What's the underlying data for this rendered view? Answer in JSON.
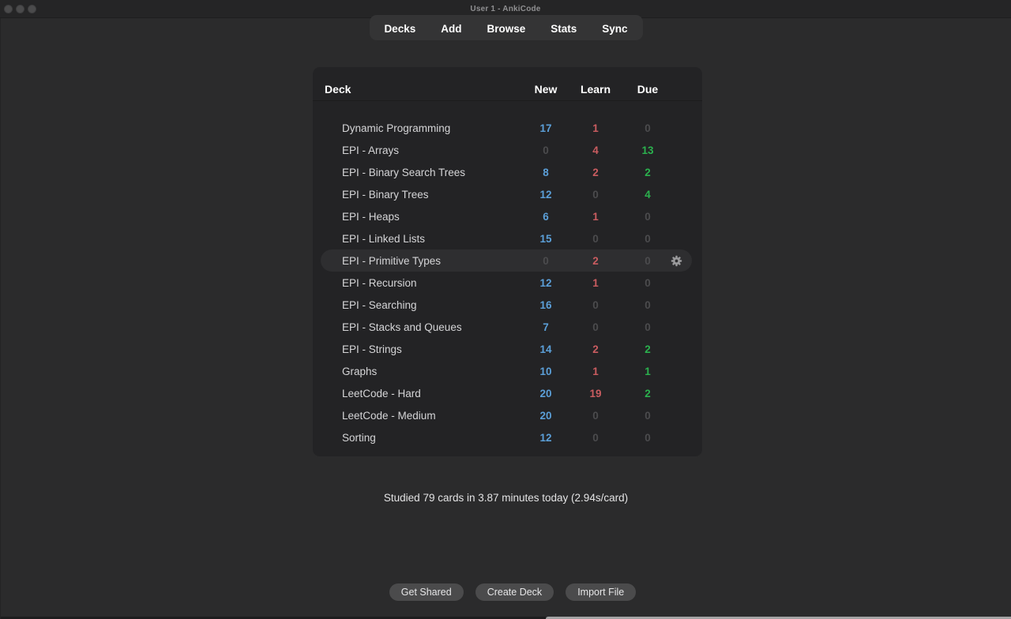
{
  "window": {
    "title": "User 1 - AnkiCode"
  },
  "nav": {
    "items": [
      {
        "label": "Decks"
      },
      {
        "label": "Add"
      },
      {
        "label": "Browse"
      },
      {
        "label": "Stats"
      },
      {
        "label": "Sync"
      }
    ]
  },
  "table": {
    "headers": {
      "deck": "Deck",
      "new": "New",
      "learn": "Learn",
      "due": "Due"
    },
    "rows": [
      {
        "name": "Dynamic Programming",
        "new": 17,
        "learn": 1,
        "due": 0,
        "hovered": false
      },
      {
        "name": "EPI - Arrays",
        "new": 0,
        "learn": 4,
        "due": 13,
        "hovered": false
      },
      {
        "name": "EPI - Binary Search Trees",
        "new": 8,
        "learn": 2,
        "due": 2,
        "hovered": false
      },
      {
        "name": "EPI - Binary Trees",
        "new": 12,
        "learn": 0,
        "due": 4,
        "hovered": false
      },
      {
        "name": "EPI - Heaps",
        "new": 6,
        "learn": 1,
        "due": 0,
        "hovered": false
      },
      {
        "name": "EPI - Linked Lists",
        "new": 15,
        "learn": 0,
        "due": 0,
        "hovered": false
      },
      {
        "name": "EPI - Primitive Types",
        "new": 0,
        "learn": 2,
        "due": 0,
        "hovered": true
      },
      {
        "name": "EPI - Recursion",
        "new": 12,
        "learn": 1,
        "due": 0,
        "hovered": false
      },
      {
        "name": "EPI - Searching",
        "new": 16,
        "learn": 0,
        "due": 0,
        "hovered": false
      },
      {
        "name": "EPI - Stacks and Queues",
        "new": 7,
        "learn": 0,
        "due": 0,
        "hovered": false
      },
      {
        "name": "EPI - Strings",
        "new": 14,
        "learn": 2,
        "due": 2,
        "hovered": false
      },
      {
        "name": "Graphs",
        "new": 10,
        "learn": 1,
        "due": 1,
        "hovered": false
      },
      {
        "name": "LeetCode - Hard",
        "new": 20,
        "learn": 19,
        "due": 2,
        "hovered": false
      },
      {
        "name": "LeetCode - Medium",
        "new": 20,
        "learn": 0,
        "due": 0,
        "hovered": false
      },
      {
        "name": "Sorting",
        "new": 12,
        "learn": 0,
        "due": 0,
        "hovered": false
      }
    ]
  },
  "stats_line": "Studied 79 cards in 3.87 minutes today (2.94s/card)",
  "footer": {
    "buttons": [
      {
        "label": "Get Shared"
      },
      {
        "label": "Create Deck"
      },
      {
        "label": "Import File"
      }
    ]
  },
  "icons": {
    "gear": "gear-icon",
    "traffic_lights": [
      "close-icon",
      "minimize-icon",
      "zoom-icon"
    ]
  },
  "colors": {
    "new_count": "#5b9fd8",
    "learn_count": "#c95c60",
    "due_count": "#2bb14e",
    "zero_count": "#4b4b4d",
    "card_bg": "#232325",
    "page_bg": "#2b2b2c",
    "hover_row_bg": "#2e2e30"
  }
}
